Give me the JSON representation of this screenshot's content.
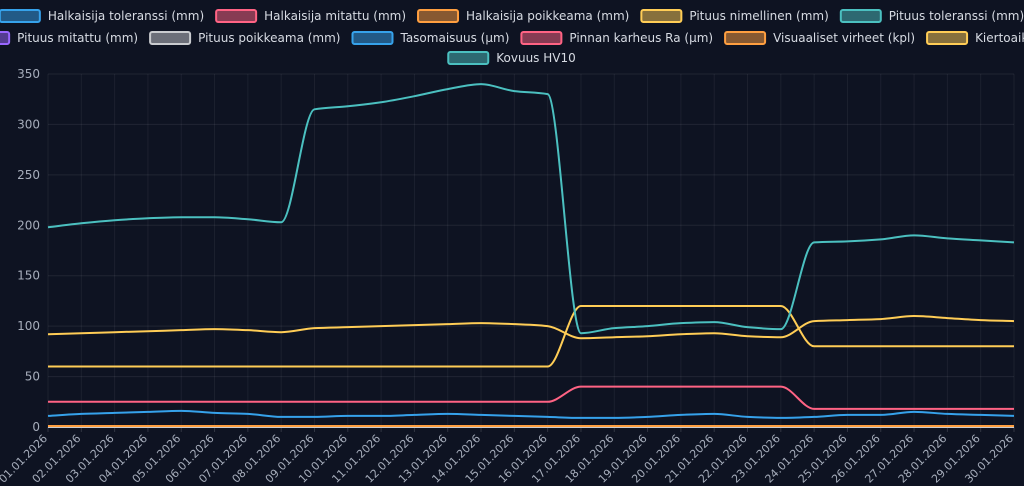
{
  "chart_data": {
    "type": "line",
    "title": "",
    "xlabel": "",
    "ylabel": "",
    "ylim": [
      0,
      350
    ],
    "yticks": [
      0,
      50,
      100,
      150,
      200,
      250,
      300,
      350
    ],
    "grid": true,
    "legend_position": "top",
    "categories": [
      "01.01.2026",
      "02.01.2026",
      "03.01.2026",
      "04.01.2026",
      "05.01.2026",
      "06.01.2026",
      "07.01.2026",
      "08.01.2026",
      "09.01.2026",
      "10.01.2026",
      "11.01.2026",
      "12.01.2026",
      "13.01.2026",
      "14.01.2026",
      "15.01.2026",
      "16.01.2026",
      "17.01.2026",
      "18.01.2026",
      "19.01.2026",
      "20.01.2026",
      "21.01.2026",
      "22.01.2026",
      "23.01.2026",
      "24.01.2026",
      "25.01.2026",
      "26.01.2026",
      "27.01.2026",
      "28.01.2026",
      "29.01.2026",
      "30.01.2026"
    ],
    "series": [
      {
        "name": "Halkaisija toleranssi (mm)",
        "color": "#36a2eb",
        "values": [
          0.05,
          0.05,
          0.05,
          0.05,
          0.05,
          0.05,
          0.05,
          0.05,
          0.05,
          0.05,
          0.05,
          0.05,
          0.05,
          0.05,
          0.05,
          0.05,
          0.05,
          0.05,
          0.05,
          0.05,
          0.05,
          0.05,
          0.05,
          0.05,
          0.05,
          0.05,
          0.05,
          0.05,
          0.05,
          0.05
        ]
      },
      {
        "name": "Halkaisija mitattu (mm)",
        "color": "#ff6384",
        "values": [
          1,
          1,
          1,
          1,
          1,
          1,
          1,
          1,
          1,
          1,
          1,
          1,
          1,
          1,
          1,
          1,
          1,
          1,
          1,
          1,
          1,
          1,
          1,
          1,
          1,
          1,
          1,
          1,
          1,
          1
        ]
      },
      {
        "name": "Halkaisija poikkeama (mm)",
        "color": "#ff9f40",
        "values": [
          0,
          0,
          0,
          0,
          0,
          0,
          0,
          0,
          0,
          0,
          0,
          0,
          0,
          0,
          0,
          0,
          0,
          0,
          0,
          0,
          0,
          0,
          0,
          0,
          0,
          0,
          0,
          0,
          0,
          0
        ]
      },
      {
        "name": "Pituus nimellinen (mm)",
        "color": "#ffcd56",
        "values": [
          60,
          60,
          60,
          60,
          60,
          60,
          60,
          60,
          60,
          60,
          60,
          60,
          60,
          60,
          60,
          60,
          120,
          120,
          120,
          120,
          120,
          120,
          120,
          80,
          80,
          80,
          80,
          80,
          80,
          80
        ]
      },
      {
        "name": "Pituus toleranssi (mm)",
        "color": "#4bc0c0",
        "values": [
          0.2,
          0.2,
          0.2,
          0.2,
          0.2,
          0.2,
          0.2,
          0.2,
          0.2,
          0.2,
          0.2,
          0.2,
          0.2,
          0.2,
          0.2,
          0.2,
          0.2,
          0.2,
          0.2,
          0.2,
          0.2,
          0.2,
          0.2,
          0.2,
          0.2,
          0.2,
          0.2,
          0.2,
          0.2,
          0.2
        ]
      },
      {
        "name": "Pituus mitattu (mm)",
        "color": "#9966ff",
        "values": [
          0.5,
          0.5,
          0.5,
          0.5,
          0.5,
          0.5,
          0.5,
          0.5,
          0.5,
          0.5,
          0.5,
          0.5,
          0.5,
          0.5,
          0.5,
          0.5,
          0.5,
          0.5,
          0.5,
          0.5,
          0.5,
          0.5,
          0.5,
          0.5,
          0.5,
          0.5,
          0.5,
          0.5,
          0.5,
          0.5
        ]
      },
      {
        "name": "Pituus poikkeama (mm)",
        "color": "#c9cbcf",
        "values": [
          0,
          0,
          0,
          0,
          0,
          0,
          0,
          0,
          0,
          0,
          0,
          0,
          0,
          0,
          0,
          0,
          0,
          0,
          0,
          0,
          0,
          0,
          0,
          0,
          0,
          0,
          0,
          0,
          0,
          0
        ]
      },
      {
        "name": "Tasomaisuus (µm)",
        "color": "#36a2eb",
        "values": [
          11,
          13,
          14,
          15,
          16,
          14,
          13,
          10,
          10,
          11,
          11,
          12,
          13,
          12,
          11,
          10,
          9,
          9,
          10,
          12,
          13,
          10,
          9,
          10,
          12,
          12,
          15,
          13,
          12,
          11
        ]
      },
      {
        "name": "Pinnan karheus Ra (µm)",
        "color": "#ff6384",
        "values": [
          25,
          25,
          25,
          25,
          25,
          25,
          25,
          25,
          25,
          25,
          25,
          25,
          25,
          25,
          25,
          25,
          40,
          40,
          40,
          40,
          40,
          40,
          40,
          18,
          18,
          18,
          18,
          18,
          18,
          18
        ]
      },
      {
        "name": "Visuaaliset virheet (kpl)",
        "color": "#ff9f40",
        "values": [
          1,
          1,
          1,
          1,
          1,
          1,
          1,
          1,
          1,
          1,
          1,
          1,
          1,
          1,
          1,
          1,
          1,
          1,
          1,
          1,
          1,
          1,
          1,
          1,
          1,
          1,
          1,
          1,
          1,
          1
        ]
      },
      {
        "name": "Kiertoaika (s)",
        "color": "#ffcd56",
        "values": [
          92,
          93,
          94,
          95,
          96,
          97,
          96,
          94,
          98,
          99,
          100,
          101,
          102,
          103,
          102,
          100,
          88,
          89,
          90,
          92,
          93,
          90,
          89,
          105,
          106,
          107,
          110,
          108,
          106,
          105
        ]
      },
      {
        "name": "Kovuus HV10",
        "color": "#4bc0c0",
        "values": [
          198,
          202,
          205,
          207,
          208,
          208,
          206,
          203,
          315,
          318,
          322,
          328,
          335,
          340,
          333,
          330,
          93,
          98,
          100,
          103,
          104,
          99,
          97,
          183,
          184,
          186,
          190,
          187,
          185,
          183
        ]
      }
    ]
  }
}
